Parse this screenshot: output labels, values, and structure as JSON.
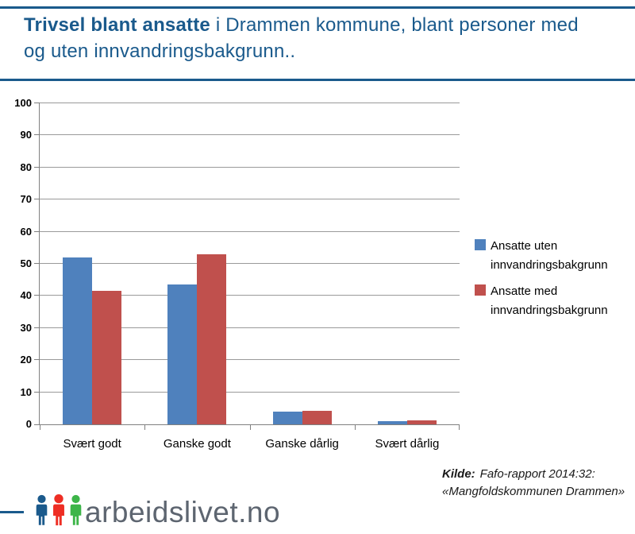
{
  "header": {
    "title_bold": "Trivsel blant ansatte",
    "title_rest": " i Drammen kommune, blant personer med og uten innvandringsbakgrunn..",
    "accent_color": "#1a5a8c"
  },
  "chart_data": {
    "type": "bar",
    "title": "Trivsel blant ansatte i Drammen kommune, blant personer med og uten innvandringsbakgrunn..",
    "categories": [
      "Svært godt",
      "Ganske godt",
      "Ganske dårlig",
      "Svært dårlig"
    ],
    "series": [
      {
        "name": "Ansatte uten innvandringsbakgrunn",
        "color": "#4f81bd",
        "values": [
          52,
          43.5,
          4,
          1
        ]
      },
      {
        "name": "Ansatte med innvandringsbakgrunn",
        "color": "#c0504d",
        "values": [
          41.5,
          53,
          4.3,
          1.2
        ]
      }
    ],
    "xlabel": "",
    "ylabel": "",
    "ylim": [
      0,
      100
    ],
    "yticks": [
      0,
      10,
      20,
      30,
      40,
      50,
      60,
      70,
      80,
      90,
      100
    ],
    "grid": true,
    "legend_position": "right",
    "gridline_color": "#9a9a9a",
    "axis_color": "#808080"
  },
  "source": {
    "label": "Kilde:",
    "line1": "Fafo-rapport 2014:32:",
    "line2": "«Mangfoldskommunen Drammen»"
  },
  "footer": {
    "logo_text": "arbeidslivet.no",
    "logo_colors": {
      "blue": "#1b5a8c",
      "red": "#ee2e24",
      "green": "#3db549"
    },
    "logo_text_color": "#5d6570"
  }
}
